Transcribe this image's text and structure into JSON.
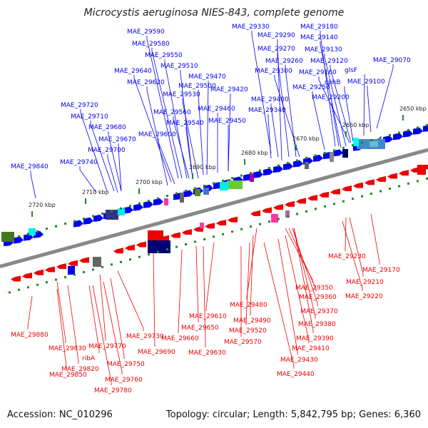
{
  "title": "Microcystis aeruginosa NIES-843, complete genome",
  "footer": {
    "accession": "Accession: NC_010296",
    "stats": "Topology: circular; Length: 5,842,795 bp; Genes: 6,360"
  },
  "ticks": [
    "2650 kbp",
    "2660 kbp",
    "2670 kbp",
    "2680 kbp",
    "2690 kbp",
    "2700 kbp",
    "2710 kbp",
    "2720 kbp"
  ],
  "colors": {
    "forward": "#0000ee",
    "reverse": "#ee0000",
    "backbone": "#888888",
    "tick": "#228822"
  },
  "top_labels": [
    "MAE_29330",
    "MAE_29180",
    "MAE_29590",
    "MAE_29290",
    "MAE_29140",
    "MAE_29580",
    "MAE_29270",
    "MAE_29130",
    "MAE_29550",
    "MAE_29260",
    "MAE_29120",
    "MAE_29070",
    "MAE_29640",
    "MAE_29510",
    "MAE_29300",
    "MAE_29160",
    "glsF",
    "MAE_29470",
    "cphB",
    "MAE_29620",
    "MAE_29500",
    "MAE_29100",
    "MAE_29420",
    "MAE_29250",
    "MAE_29530",
    "MAE_29400",
    "MAE_29200",
    "MAE_29460",
    "MAE_29340",
    "MAE_29560",
    "MAE_29720",
    "MAE_29450",
    "MAE_29540",
    "MAE_29710",
    "MAE_29680",
    "MAE_29600",
    "MAE_29670",
    "MAE_29700",
    "MAE_29740",
    "MAE_29840"
  ],
  "bottom_labels": [
    "MAE_29230",
    "MAE_29170",
    "MAE_29210",
    "MAE_29220",
    "MAE_29350",
    "MAE_29360",
    "MAE_29480",
    "MAE_29370",
    "MAE_29610",
    "MAE_29490",
    "MAE_29380",
    "MAE_29650",
    "MAE_29520",
    "MAE_29880",
    "MAE_29730",
    "MAE_29660",
    "MAE_29570",
    "MAE_29390",
    "MAE_29410",
    "MAE_29770",
    "MAE_29830",
    "MAE_29690",
    "MAE_29630",
    "ribA",
    "MAE_29430",
    "MAE_29750",
    "MAE_29820",
    "MAE_29440",
    "MAE_29850",
    "MAE_29760",
    "MAE_29780"
  ]
}
